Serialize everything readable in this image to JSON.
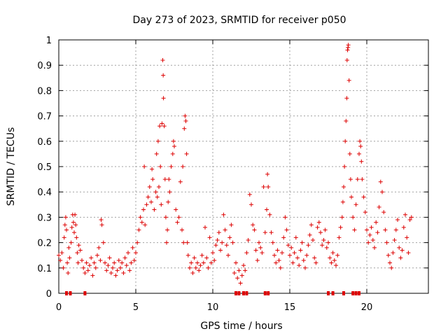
{
  "chart_data": {
    "type": "scatter",
    "title": "Day 273 of 2023, SRMTID for receiver p050",
    "xlabel": "GPS time / hours",
    "ylabel": "SRMTID / TECUs",
    "xlim": [
      0,
      24
    ],
    "ylim": [
      0,
      1
    ],
    "grid": true,
    "marker": "+",
    "color": "#dd0000",
    "x_ticks": [
      0,
      5,
      10,
      15,
      20
    ],
    "x_tick_labels": [
      "0",
      "5",
      "10",
      "15",
      "20"
    ],
    "y_ticks": [
      0,
      0.1,
      0.2,
      0.3,
      0.4,
      0.5,
      0.6,
      0.7,
      0.8,
      0.9,
      1
    ],
    "y_tick_labels": [
      "0",
      "0.1",
      "0.2",
      "0.3",
      "0.4",
      "0.5",
      "0.6",
      "0.7",
      "0.8",
      "0.9",
      "1"
    ],
    "zero_markers_x": [
      0.5,
      0.75,
      1.7,
      11.5,
      11.7,
      12.0,
      12.2,
      13.4,
      13.6,
      17.5,
      17.8,
      18.5,
      19.1,
      19.3,
      19.5
    ],
    "series": [
      {
        "name": "SRMTID",
        "points": [
          [
            0.0,
            0.15
          ],
          [
            0.1,
            0.13
          ],
          [
            0.2,
            0.16
          ],
          [
            0.3,
            0.1
          ],
          [
            0.35,
            0.22
          ],
          [
            0.4,
            0.27
          ],
          [
            0.45,
            0.3
          ],
          [
            0.5,
            0.25
          ],
          [
            0.55,
            0.12
          ],
          [
            0.6,
            0.08
          ],
          [
            0.65,
            0.18
          ],
          [
            0.7,
            0.14
          ],
          [
            0.8,
            0.2
          ],
          [
            0.85,
            0.26
          ],
          [
            0.9,
            0.31
          ],
          [
            0.95,
            0.28
          ],
          [
            1.0,
            0.24
          ],
          [
            1.05,
            0.31
          ],
          [
            1.1,
            0.27
          ],
          [
            1.15,
            0.22
          ],
          [
            1.2,
            0.16
          ],
          [
            1.25,
            0.12
          ],
          [
            1.3,
            0.19
          ],
          [
            1.4,
            0.17
          ],
          [
            1.5,
            0.13
          ],
          [
            1.6,
            0.1
          ],
          [
            1.7,
            0.08
          ],
          [
            1.8,
            0.12
          ],
          [
            1.9,
            0.09
          ],
          [
            2.0,
            0.11
          ],
          [
            2.1,
            0.14
          ],
          [
            2.2,
            0.07
          ],
          [
            2.3,
            0.12
          ],
          [
            2.4,
            0.1
          ],
          [
            2.5,
            0.15
          ],
          [
            2.6,
            0.18
          ],
          [
            2.7,
            0.13
          ],
          [
            2.75,
            0.29
          ],
          [
            2.8,
            0.27
          ],
          [
            2.9,
            0.2
          ],
          [
            3.0,
            0.12
          ],
          [
            3.1,
            0.09
          ],
          [
            3.2,
            0.11
          ],
          [
            3.3,
            0.14
          ],
          [
            3.4,
            0.08
          ],
          [
            3.5,
            0.1
          ],
          [
            3.6,
            0.12
          ],
          [
            3.7,
            0.07
          ],
          [
            3.8,
            0.09
          ],
          [
            3.9,
            0.13
          ],
          [
            4.0,
            0.1
          ],
          [
            4.1,
            0.12
          ],
          [
            4.2,
            0.08
          ],
          [
            4.3,
            0.14
          ],
          [
            4.4,
            0.11
          ],
          [
            4.5,
            0.16
          ],
          [
            4.6,
            0.09
          ],
          [
            4.7,
            0.12
          ],
          [
            4.8,
            0.18
          ],
          [
            4.9,
            0.13
          ],
          [
            5.0,
            0.16
          ],
          [
            5.1,
            0.2
          ],
          [
            5.2,
            0.25
          ],
          [
            5.3,
            0.3
          ],
          [
            5.4,
            0.28
          ],
          [
            5.5,
            0.33
          ],
          [
            5.55,
            0.5
          ],
          [
            5.6,
            0.27
          ],
          [
            5.7,
            0.35
          ],
          [
            5.8,
            0.38
          ],
          [
            5.9,
            0.42
          ],
          [
            6.0,
            0.36
          ],
          [
            6.05,
            0.49
          ],
          [
            6.1,
            0.45
          ],
          [
            6.2,
            0.33
          ],
          [
            6.3,
            0.4
          ],
          [
            6.35,
            0.55
          ],
          [
            6.4,
            0.38
          ],
          [
            6.45,
            0.6
          ],
          [
            6.5,
            0.42
          ],
          [
            6.55,
            0.66
          ],
          [
            6.6,
            0.5
          ],
          [
            6.65,
            0.35
          ],
          [
            6.7,
            0.67
          ],
          [
            6.75,
            0.92
          ],
          [
            6.78,
            0.86
          ],
          [
            6.8,
            0.77
          ],
          [
            6.85,
            0.66
          ],
          [
            6.9,
            0.45
          ],
          [
            6.95,
            0.3
          ],
          [
            7.0,
            0.2
          ],
          [
            7.05,
            0.25
          ],
          [
            7.1,
            0.36
          ],
          [
            7.15,
            0.45
          ],
          [
            7.2,
            0.4
          ],
          [
            7.3,
            0.5
          ],
          [
            7.4,
            0.55
          ],
          [
            7.45,
            0.6
          ],
          [
            7.5,
            0.58
          ],
          [
            7.6,
            0.33
          ],
          [
            7.7,
            0.28
          ],
          [
            7.8,
            0.3
          ],
          [
            7.9,
            0.44
          ],
          [
            8.0,
            0.25
          ],
          [
            8.05,
            0.5
          ],
          [
            8.1,
            0.2
          ],
          [
            8.15,
            0.65
          ],
          [
            8.2,
            0.7
          ],
          [
            8.25,
            0.68
          ],
          [
            8.3,
            0.55
          ],
          [
            8.35,
            0.2
          ],
          [
            8.4,
            0.15
          ],
          [
            8.5,
            0.1
          ],
          [
            8.6,
            0.12
          ],
          [
            8.7,
            0.08
          ],
          [
            8.8,
            0.14
          ],
          [
            8.9,
            0.1
          ],
          [
            9.0,
            0.12
          ],
          [
            9.1,
            0.09
          ],
          [
            9.2,
            0.11
          ],
          [
            9.3,
            0.15
          ],
          [
            9.4,
            0.12
          ],
          [
            9.5,
            0.26
          ],
          [
            9.6,
            0.14
          ],
          [
            9.7,
            0.1
          ],
          [
            9.8,
            0.22
          ],
          [
            9.9,
            0.12
          ],
          [
            10.0,
            0.16
          ],
          [
            10.1,
            0.13
          ],
          [
            10.2,
            0.19
          ],
          [
            10.3,
            0.21
          ],
          [
            10.4,
            0.24
          ],
          [
            10.5,
            0.17
          ],
          [
            10.6,
            0.2
          ],
          [
            10.7,
            0.31
          ],
          [
            10.8,
            0.25
          ],
          [
            10.9,
            0.19
          ],
          [
            11.0,
            0.15
          ],
          [
            11.1,
            0.22
          ],
          [
            11.2,
            0.27
          ],
          [
            11.3,
            0.2
          ],
          [
            11.4,
            0.08
          ],
          [
            11.5,
            0.12
          ],
          [
            11.6,
            0.06
          ],
          [
            11.7,
            0.09
          ],
          [
            11.8,
            0.04
          ],
          [
            11.9,
            0.07
          ],
          [
            12.0,
            0.11
          ],
          [
            12.1,
            0.09
          ],
          [
            12.2,
            0.16
          ],
          [
            12.3,
            0.21
          ],
          [
            12.4,
            0.39
          ],
          [
            12.5,
            0.35
          ],
          [
            12.6,
            0.27
          ],
          [
            12.7,
            0.25
          ],
          [
            12.8,
            0.17
          ],
          [
            12.9,
            0.13
          ],
          [
            13.0,
            0.2
          ],
          [
            13.1,
            0.18
          ],
          [
            13.2,
            0.16
          ],
          [
            13.3,
            0.42
          ],
          [
            13.4,
            0.24
          ],
          [
            13.5,
            0.33
          ],
          [
            13.55,
            0.47
          ],
          [
            13.6,
            0.42
          ],
          [
            13.7,
            0.31
          ],
          [
            13.8,
            0.24
          ],
          [
            13.9,
            0.2
          ],
          [
            14.0,
            0.15
          ],
          [
            14.1,
            0.12
          ],
          [
            14.2,
            0.17
          ],
          [
            14.3,
            0.13
          ],
          [
            14.4,
            0.1
          ],
          [
            14.5,
            0.16
          ],
          [
            14.6,
            0.22
          ],
          [
            14.7,
            0.3
          ],
          [
            14.8,
            0.25
          ],
          [
            14.9,
            0.19
          ],
          [
            15.0,
            0.15
          ],
          [
            15.1,
            0.18
          ],
          [
            15.2,
            0.12
          ],
          [
            15.3,
            0.16
          ],
          [
            15.4,
            0.22
          ],
          [
            15.5,
            0.14
          ],
          [
            15.6,
            0.11
          ],
          [
            15.7,
            0.17
          ],
          [
            15.8,
            0.2
          ],
          [
            15.9,
            0.13
          ],
          [
            16.0,
            0.1
          ],
          [
            16.1,
            0.15
          ],
          [
            16.2,
            0.19
          ],
          [
            16.3,
            0.23
          ],
          [
            16.4,
            0.27
          ],
          [
            16.5,
            0.21
          ],
          [
            16.6,
            0.14
          ],
          [
            16.7,
            0.12
          ],
          [
            16.8,
            0.26
          ],
          [
            16.9,
            0.28
          ],
          [
            17.0,
            0.24
          ],
          [
            17.1,
            0.19
          ],
          [
            17.2,
            0.21
          ],
          [
            17.3,
            0.25
          ],
          [
            17.4,
            0.18
          ],
          [
            17.5,
            0.2
          ],
          [
            17.6,
            0.14
          ],
          [
            17.7,
            0.12
          ],
          [
            17.8,
            0.16
          ],
          [
            17.9,
            0.13
          ],
          [
            18.0,
            0.11
          ],
          [
            18.1,
            0.15
          ],
          [
            18.2,
            0.22
          ],
          [
            18.3,
            0.26
          ],
          [
            18.4,
            0.3
          ],
          [
            18.45,
            0.36
          ],
          [
            18.5,
            0.42
          ],
          [
            18.55,
            0.5
          ],
          [
            18.6,
            0.6
          ],
          [
            18.65,
            0.68
          ],
          [
            18.7,
            0.77
          ],
          [
            18.72,
            0.92
          ],
          [
            18.75,
            0.96
          ],
          [
            18.78,
            0.97
          ],
          [
            18.8,
            0.98
          ],
          [
            18.85,
            0.84
          ],
          [
            18.9,
            0.55
          ],
          [
            18.95,
            0.45
          ],
          [
            19.0,
            0.38
          ],
          [
            19.1,
            0.3
          ],
          [
            19.2,
            0.25
          ],
          [
            19.3,
            0.35
          ],
          [
            19.4,
            0.45
          ],
          [
            19.5,
            0.55
          ],
          [
            19.55,
            0.6
          ],
          [
            19.6,
            0.58
          ],
          [
            19.65,
            0.52
          ],
          [
            19.7,
            0.45
          ],
          [
            19.8,
            0.38
          ],
          [
            19.9,
            0.32
          ],
          [
            20.0,
            0.25
          ],
          [
            20.1,
            0.2
          ],
          [
            20.2,
            0.23
          ],
          [
            20.3,
            0.26
          ],
          [
            20.4,
            0.21
          ],
          [
            20.5,
            0.18
          ],
          [
            20.6,
            0.28
          ],
          [
            20.7,
            0.24
          ],
          [
            20.8,
            0.34
          ],
          [
            20.9,
            0.44
          ],
          [
            21.0,
            0.4
          ],
          [
            21.1,
            0.32
          ],
          [
            21.2,
            0.25
          ],
          [
            21.3,
            0.2
          ],
          [
            21.4,
            0.15
          ],
          [
            21.5,
            0.12
          ],
          [
            21.6,
            0.1
          ],
          [
            21.7,
            0.16
          ],
          [
            21.8,
            0.21
          ],
          [
            21.9,
            0.25
          ],
          [
            22.0,
            0.29
          ],
          [
            22.1,
            0.18
          ],
          [
            22.2,
            0.14
          ],
          [
            22.3,
            0.17
          ],
          [
            22.4,
            0.26
          ],
          [
            22.5,
            0.31
          ],
          [
            22.6,
            0.22
          ],
          [
            22.7,
            0.16
          ],
          [
            22.8,
            0.29
          ],
          [
            22.9,
            0.3
          ]
        ]
      }
    ]
  }
}
